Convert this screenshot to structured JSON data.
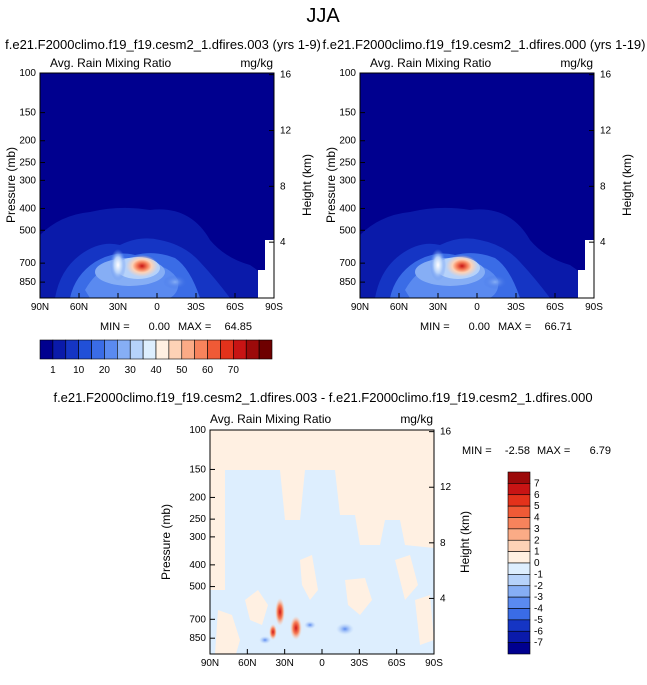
{
  "page_title": "JJA",
  "chart_data": [
    {
      "type": "heatmap",
      "case_label": "f.e21.F2000climo.f19_f19.cesm2_1.dfires.003 (yrs 1-9)",
      "title": "Avg. Rain Mixing Ratio",
      "units": "mg/kg",
      "ylabel": "Pressure (mb)",
      "y2label": "Height (km)",
      "x_ticks": [
        "90N",
        "60N",
        "30N",
        "0",
        "30S",
        "60S",
        "90S"
      ],
      "y_ticks": [
        "100",
        "150",
        "200",
        "250",
        "300",
        "400",
        "500",
        "700",
        "850"
      ],
      "y2_ticks": [
        "16",
        "12",
        "8",
        "4"
      ],
      "stats": {
        "min_label": "MIN =",
        "min": "0.00",
        "max_label": "MAX =",
        "max": "64.85"
      },
      "max_value": 64.85,
      "peak_location": {
        "lat": 15,
        "pressure_mb": 700
      }
    },
    {
      "type": "heatmap",
      "case_label": "f.e21.F2000climo.f19_f19.cesm2_1.dfires.000 (yrs 1-19)",
      "title": "Avg. Rain Mixing Ratio",
      "units": "mg/kg",
      "ylabel": "Pressure (mb)",
      "y2label": "Height (km)",
      "x_ticks": [
        "90N",
        "60N",
        "30N",
        "0",
        "30S",
        "60S",
        "90S"
      ],
      "y_ticks": [
        "100",
        "150",
        "200",
        "250",
        "300",
        "400",
        "500",
        "700",
        "850"
      ],
      "y2_ticks": [
        "16",
        "12",
        "8",
        "4"
      ],
      "stats": {
        "min_label": "MIN =",
        "min": "0.00",
        "max_label": "MAX =",
        "max": "66.71"
      },
      "max_value": 66.71,
      "peak_location": {
        "lat": 15,
        "pressure_mb": 700
      }
    },
    {
      "type": "heatmap",
      "case_label": "f.e21.F2000climo.f19_f19.cesm2_1.dfires.003 - f.e21.F2000climo.f19_f19.cesm2_1.dfires.000",
      "title": "Avg. Rain Mixing Ratio",
      "units": "mg/kg",
      "ylabel": "Pressure (mb)",
      "y2label": "Height (km)",
      "x_ticks": [
        "90N",
        "60N",
        "30N",
        "0",
        "30S",
        "60S",
        "90S"
      ],
      "y_ticks": [
        "100",
        "150",
        "200",
        "250",
        "300",
        "400",
        "500",
        "700",
        "850"
      ],
      "y2_ticks": [
        "16",
        "12",
        "8",
        "4"
      ],
      "stats": {
        "min_label": "MIN =",
        "min": "-2.58",
        "max_label": "MAX =",
        "max": "6.79"
      }
    }
  ],
  "colorbar_top": {
    "labels": [
      "1",
      "10",
      "20",
      "30",
      "40",
      "50",
      "60",
      "70"
    ],
    "colors": [
      "#00008f",
      "#0a1aaa",
      "#1535c4",
      "#2150d8",
      "#3a6ce6",
      "#5a8af0",
      "#86aef5",
      "#b6d2fa",
      "#ddeefe",
      "#fff0e2",
      "#fdd2b6",
      "#fbab86",
      "#f7835c",
      "#f05a36",
      "#e3321b",
      "#c81414",
      "#9c0a0a",
      "#6e0000"
    ]
  },
  "colorbar_diff": {
    "labels": [
      "7",
      "6",
      "5",
      "4",
      "3",
      "2",
      "1",
      "0",
      "-1",
      "-2",
      "-3",
      "-4",
      "-5",
      "-6",
      "-7"
    ],
    "colors": [
      "#9c0a0a",
      "#c81414",
      "#e3321b",
      "#f05a36",
      "#f7835c",
      "#fbab86",
      "#fdd2b6",
      "#fff0e2",
      "#ddeefe",
      "#b6d2fa",
      "#86aef5",
      "#5a8af0",
      "#3a6ce6",
      "#1535c4",
      "#0a1aaa",
      "#00008f"
    ]
  }
}
